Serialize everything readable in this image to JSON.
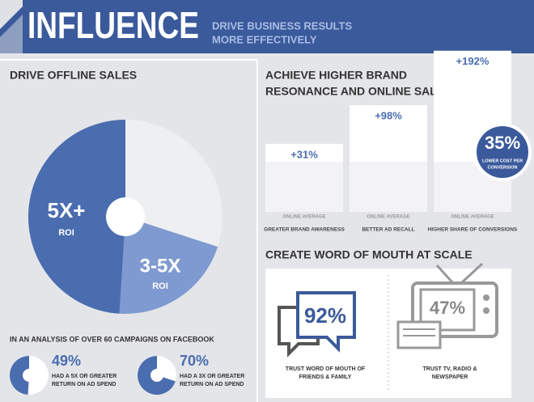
{
  "header": {
    "title": "INFLUENCE",
    "subtitle": [
      "DRIVE BUSINESS RESULTS",
      "MORE EFFECTIVELY"
    ]
  },
  "offline": {
    "heading": "DRIVE OFFLINE SALES",
    "pie": [
      {
        "label": "5X+",
        "sub": "ROI"
      },
      {
        "label": "3-5X",
        "sub": "ROI"
      }
    ],
    "intro": "IN AN ANALYSIS OF OVER 60 CAMPAIGNS ON FACEBOOK",
    "stats": [
      {
        "value": 49,
        "label": "49%",
        "text": [
          "HAD A 5X OR GREATER",
          "RETURN ON AD SPEND"
        ]
      },
      {
        "value": 70,
        "label": "70%",
        "text": [
          "HAD A 3X OR GREATER",
          "RETURN ON AD SPEND"
        ]
      }
    ]
  },
  "brand": {
    "heading": [
      "ACHIEVE HIGHER BRAND",
      "RESONANCE AND ONLINE SALES"
    ],
    "bars": [
      {
        "value": 31,
        "label": "+31%",
        "base": "ONLINE AVERAGE",
        "caption": "GREATER BRAND AWARENESS"
      },
      {
        "value": 98,
        "label": "+98%",
        "base": "ONLINE AVERAGE",
        "caption": "BETTER AD RECALL"
      },
      {
        "value": 192,
        "label": "+192%",
        "base": "ONLINE AVERAGE",
        "caption": "HIGHER SHARE OF CONVERSIONS"
      }
    ],
    "badge": {
      "label": "35%",
      "text": [
        "LOWER COST PER",
        "CONVERSION"
      ]
    }
  },
  "word_of_mouth": {
    "heading": "CREATE WORD OF MOUTH AT SCALE",
    "items": [
      {
        "label": "92%",
        "text": [
          "TRUST WORD OF MOUTH OF",
          "FRIENDS & FAMILY"
        ]
      },
      {
        "label": "47%",
        "text": [
          "TRUST TV, RADIO &",
          "NEWSPAPER"
        ]
      }
    ]
  }
}
